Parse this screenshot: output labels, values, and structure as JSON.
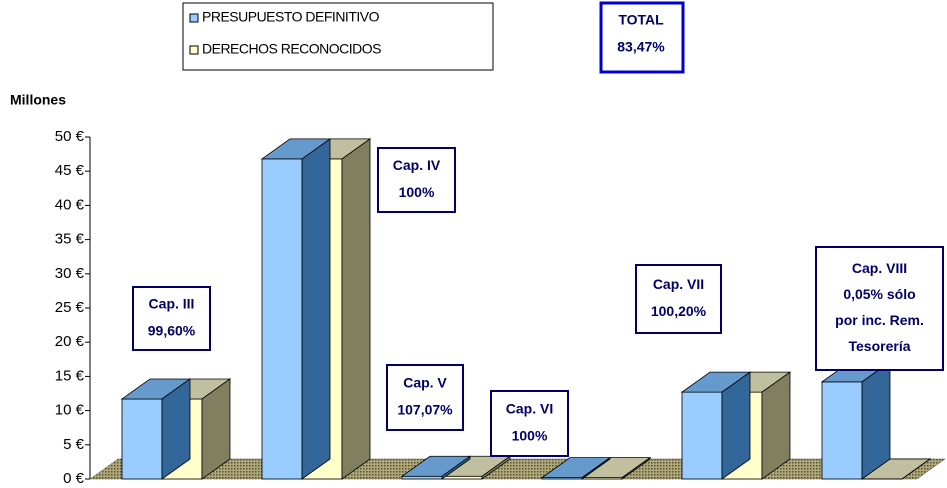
{
  "chart_data": {
    "type": "bar3d",
    "y_axis_label": "Millones",
    "categories": [
      null,
      null,
      null,
      null,
      null,
      null
    ],
    "series": [
      {
        "name": "PRESUPUESTO DEFINITIVO",
        "color": "#99ccff",
        "values": [
          11.7,
          46.8,
          0.4,
          0.2,
          12.7,
          14.2
        ]
      },
      {
        "name": "DERECHOS RECONOCIDOS",
        "color": "#ffffcc",
        "values": [
          11.7,
          46.8,
          0.4,
          0.2,
          12.7,
          0.01
        ]
      }
    ],
    "ylim": [
      0,
      50
    ],
    "yticks": [
      {
        "value": 0,
        "label": "0 €"
      },
      {
        "value": 5,
        "label": "5 €"
      },
      {
        "value": 10,
        "label": "10 €"
      },
      {
        "value": 15,
        "label": "15 €"
      },
      {
        "value": 20,
        "label": "20 €"
      },
      {
        "value": 25,
        "label": "25 €"
      },
      {
        "value": 30,
        "label": "30 €"
      },
      {
        "value": 35,
        "label": "35 €"
      },
      {
        "value": 40,
        "label": "40 €"
      },
      {
        "value": 45,
        "label": "45 €"
      },
      {
        "value": 50,
        "label": "50 €"
      }
    ],
    "total": [
      "TOTAL",
      "83,47%"
    ],
    "annotations": [
      [
        "Cap. III",
        "99,60%"
      ],
      [
        "Cap. IV",
        "100%"
      ],
      [
        "Cap. V",
        "107,07%"
      ],
      [
        "Cap. VI",
        "100%"
      ],
      [
        "Cap. VII",
        "100,20%"
      ],
      [
        "Cap. VIII",
        "0,05% sólo",
        "por inc. Rem.",
        "Tesorería"
      ]
    ]
  }
}
